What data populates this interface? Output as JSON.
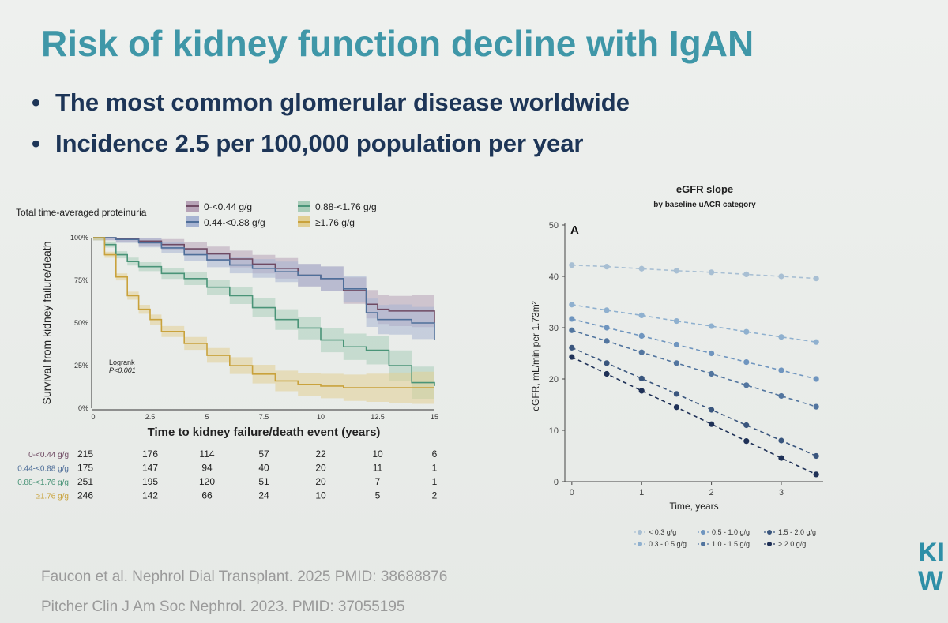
{
  "slide": {
    "title": "Risk of kidney function decline with IgAN",
    "bullets": [
      "The most common glomerular disease worldwide",
      "Incidence 2.5 per 100,000 population per year"
    ],
    "references": [
      "Faucon et al. Nephrol Dial Transplant. 2025 PMID: 38688876",
      "Pitcher Clin J Am Soc Nephrol. 2023. PMID: 37055195"
    ],
    "brand_letters": [
      "KI",
      "W"
    ]
  },
  "chart_data": [
    {
      "type": "line",
      "subtype": "kaplan-meier",
      "title": "",
      "legend_title": "Total time-averaged proteinuria",
      "xlabel": "Time to kidney failure/death event (years)",
      "ylabel": "Survival from kidney failure/death",
      "xlim": [
        0,
        15
      ],
      "ylim": [
        0,
        1
      ],
      "xticks": [
        "0",
        "2.5",
        "5",
        "7.5",
        "10",
        "12.5",
        "15"
      ],
      "yticks": [
        "0%",
        "25%",
        "50%",
        "75%",
        "100%"
      ],
      "annotation": [
        "Logrank",
        "P<0.001"
      ],
      "series": [
        {
          "name": "0-<0.44 g/g",
          "color": "#6f4a63",
          "band": "#b7a3b7",
          "x": [
            0,
            1,
            2,
            3,
            4,
            5,
            6,
            7,
            8,
            9,
            10,
            11,
            12,
            12.5,
            13,
            14,
            15
          ],
          "values": [
            1.0,
            0.995,
            0.98,
            0.96,
            0.935,
            0.905,
            0.875,
            0.845,
            0.82,
            0.78,
            0.76,
            0.69,
            0.61,
            0.58,
            0.57,
            0.57,
            0.5
          ]
        },
        {
          "name": "0.44-<0.88 g/g",
          "color": "#4f6f9a",
          "band": "#a7b4d2",
          "x": [
            0,
            1,
            2,
            3,
            4,
            5,
            6,
            7,
            8,
            9,
            10,
            11,
            12,
            12.5,
            13,
            14,
            15
          ],
          "values": [
            1.0,
            0.99,
            0.97,
            0.94,
            0.9,
            0.87,
            0.84,
            0.82,
            0.8,
            0.78,
            0.76,
            0.7,
            0.56,
            0.52,
            0.52,
            0.5,
            0.4
          ]
        },
        {
          "name": "0.88-<1.76 g/g",
          "color": "#4a9478",
          "band": "#a9cdb9",
          "x": [
            0,
            0.5,
            1,
            1.5,
            2,
            3,
            4,
            5,
            6,
            7,
            8,
            9,
            10,
            11,
            12,
            13,
            14,
            15
          ],
          "values": [
            1.0,
            0.96,
            0.9,
            0.86,
            0.83,
            0.79,
            0.76,
            0.71,
            0.66,
            0.59,
            0.52,
            0.47,
            0.4,
            0.36,
            0.34,
            0.25,
            0.15,
            0.13
          ]
        },
        {
          "name": "≥1.76 g/g",
          "color": "#c9a23c",
          "band": "#e1cf93",
          "x": [
            0,
            0.5,
            1,
            1.5,
            2,
            2.5,
            3,
            4,
            5,
            6,
            7,
            8,
            9,
            10,
            11,
            12,
            13,
            14,
            15
          ],
          "values": [
            1.0,
            0.9,
            0.77,
            0.66,
            0.58,
            0.52,
            0.45,
            0.38,
            0.31,
            0.25,
            0.2,
            0.16,
            0.14,
            0.13,
            0.12,
            0.12,
            0.12,
            0.12,
            0.12
          ]
        }
      ],
      "risk_table": {
        "times": [
          0,
          2.5,
          5,
          7.5,
          10,
          12.5,
          15
        ],
        "rows": [
          {
            "label": "0-<0.44 g/g",
            "color": "#6f4a63",
            "values": [
              "215",
              "176",
              "114",
              "57",
              "22",
              "10",
              "6"
            ]
          },
          {
            "label": "0.44-<0.88 g/g",
            "color": "#4f6f9a",
            "values": [
              "175",
              "147",
              "94",
              "40",
              "20",
              "11",
              "1"
            ]
          },
          {
            "label": "0.88-<1.76 g/g",
            "color": "#4a9478",
            "values": [
              "251",
              "195",
              "120",
              "51",
              "20",
              "7",
              "1"
            ]
          },
          {
            "label": "≥1.76 g/g",
            "color": "#c9a23c",
            "values": [
              "246",
              "142",
              "66",
              "24",
              "10",
              "5",
              "2"
            ]
          }
        ]
      }
    },
    {
      "type": "line",
      "subtype": "dashed-with-points",
      "title": "eGFR slope",
      "subtitle": "by baseline uACR category",
      "panel_label": "A",
      "xlabel": "Time, years",
      "ylabel": "eGFR, mL/min per 1.73m²",
      "xlim": [
        -0.1,
        3.6
      ],
      "ylim": [
        0,
        52
      ],
      "xticks": [
        0,
        1,
        2,
        3
      ],
      "yticks": [
        0,
        10,
        20,
        30,
        40,
        50
      ],
      "x": [
        0,
        0.5,
        1,
        1.5,
        2,
        2.5,
        3,
        3.5
      ],
      "series": [
        {
          "name": "< 0.3 g/g",
          "color": "#a8bfd3",
          "values": [
            42.2,
            41.9,
            41.5,
            41.1,
            40.8,
            40.4,
            40.0,
            39.6
          ]
        },
        {
          "name": "0.3 - 0.5 g/g",
          "color": "#8fb0cf",
          "values": [
            34.5,
            33.4,
            32.4,
            31.3,
            30.3,
            29.2,
            28.2,
            27.2
          ]
        },
        {
          "name": "0.5 - 1.0 g/g",
          "color": "#6f95bf",
          "values": [
            31.7,
            30.0,
            28.4,
            26.7,
            25.0,
            23.3,
            21.7,
            20.0
          ]
        },
        {
          "name": "1.0 - 1.5 g/g",
          "color": "#52759f",
          "values": [
            29.5,
            27.4,
            25.2,
            23.1,
            21.0,
            18.8,
            16.7,
            14.6
          ]
        },
        {
          "name": "1.5 - 2.0 g/g",
          "color": "#3a567e",
          "values": [
            26.1,
            23.1,
            20.1,
            17.1,
            14.0,
            11.0,
            8.0,
            5.0
          ]
        },
        {
          "name": "> 2.0 g/g",
          "color": "#1f3157",
          "values": [
            24.3,
            21.0,
            17.7,
            14.5,
            11.2,
            7.9,
            4.6,
            1.4
          ]
        }
      ]
    }
  ]
}
